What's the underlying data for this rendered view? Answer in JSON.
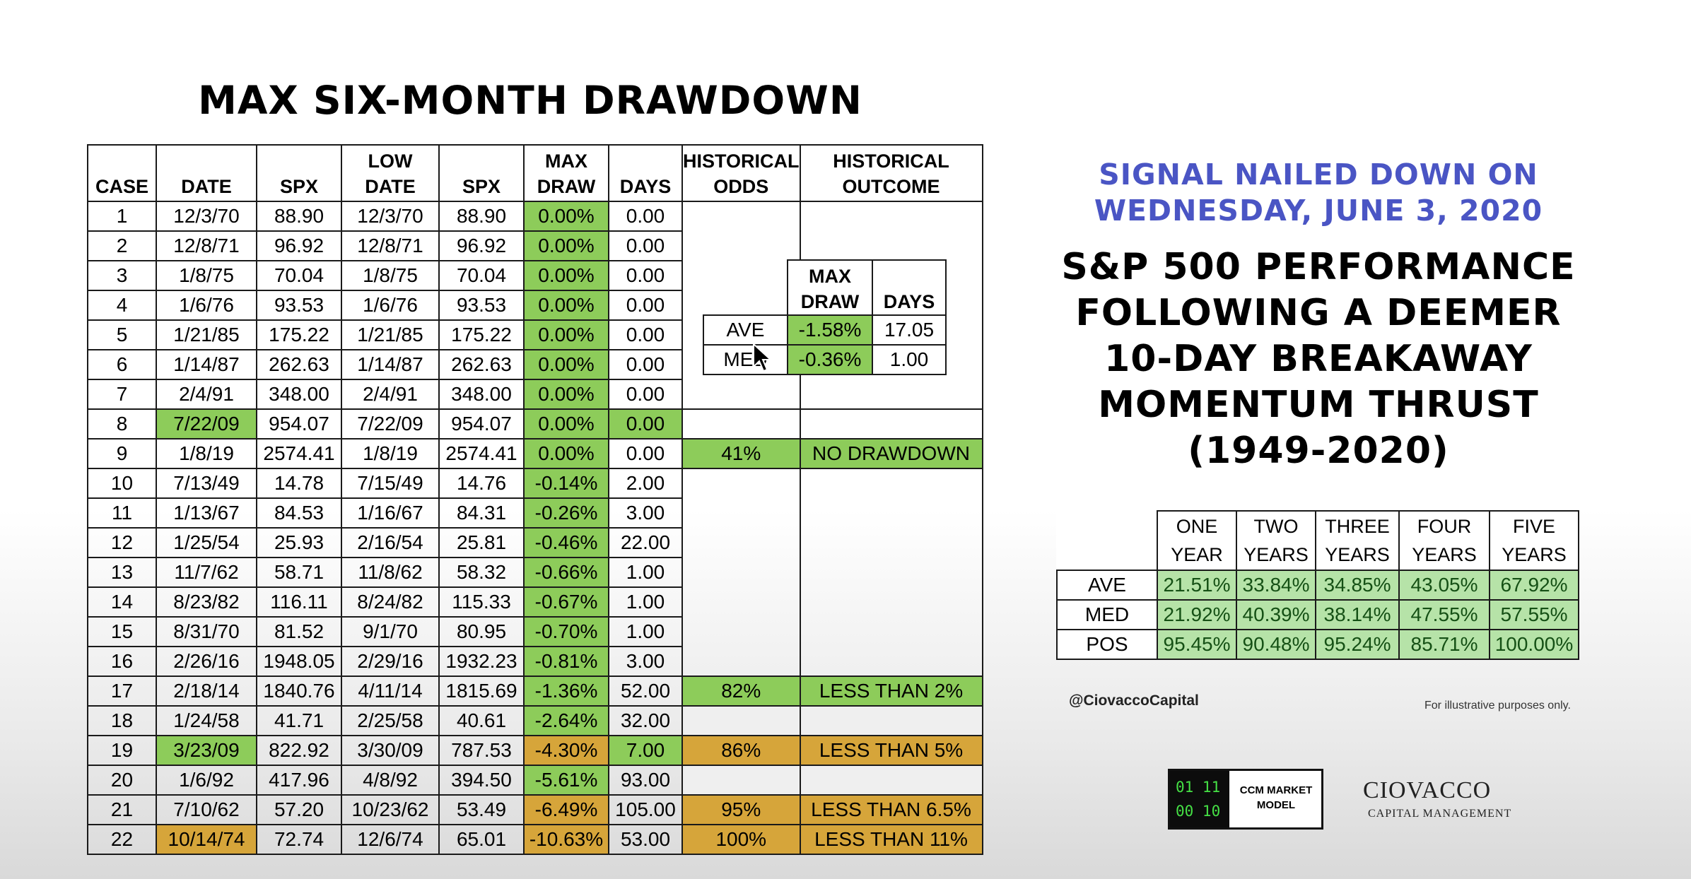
{
  "title": "MAX SIX-MONTH DRAWDOWN",
  "main_table": {
    "headers": [
      [
        "",
        "CASE"
      ],
      [
        "",
        "DATE"
      ],
      [
        "",
        "SPX"
      ],
      [
        "LOW",
        "DATE"
      ],
      [
        "",
        "SPX"
      ],
      [
        "MAX",
        "DRAW"
      ],
      [
        "",
        "DAYS"
      ],
      [
        "HISTORICAL",
        "ODDS"
      ],
      [
        "HISTORICAL",
        "OUTCOME"
      ]
    ],
    "rows": [
      {
        "case": "1",
        "date": "12/3/70",
        "spx": "88.90",
        "low_date": "12/3/70",
        "low_spx": "88.90",
        "max_draw": "0.00%",
        "days": "0.00"
      },
      {
        "case": "2",
        "date": "12/8/71",
        "spx": "96.92",
        "low_date": "12/8/71",
        "low_spx": "96.92",
        "max_draw": "0.00%",
        "days": "0.00"
      },
      {
        "case": "3",
        "date": "1/8/75",
        "spx": "70.04",
        "low_date": "1/8/75",
        "low_spx": "70.04",
        "max_draw": "0.00%",
        "days": "0.00"
      },
      {
        "case": "4",
        "date": "1/6/76",
        "spx": "93.53",
        "low_date": "1/6/76",
        "low_spx": "93.53",
        "max_draw": "0.00%",
        "days": "0.00"
      },
      {
        "case": "5",
        "date": "1/21/85",
        "spx": "175.22",
        "low_date": "1/21/85",
        "low_spx": "175.22",
        "max_draw": "0.00%",
        "days": "0.00"
      },
      {
        "case": "6",
        "date": "1/14/87",
        "spx": "262.63",
        "low_date": "1/14/87",
        "low_spx": "262.63",
        "max_draw": "0.00%",
        "days": "0.00"
      },
      {
        "case": "7",
        "date": "2/4/91",
        "spx": "348.00",
        "low_date": "2/4/91",
        "low_spx": "348.00",
        "max_draw": "0.00%",
        "days": "0.00"
      },
      {
        "case": "8",
        "date": "7/22/09",
        "spx": "954.07",
        "low_date": "7/22/09",
        "low_spx": "954.07",
        "max_draw": "0.00%",
        "days": "0.00"
      },
      {
        "case": "9",
        "date": "1/8/19",
        "spx": "2574.41",
        "low_date": "1/8/19",
        "low_spx": "2574.41",
        "max_draw": "0.00%",
        "days": "0.00",
        "odds": "41%",
        "outcome": "NO DRAWDOWN"
      },
      {
        "case": "10",
        "date": "7/13/49",
        "spx": "14.78",
        "low_date": "7/15/49",
        "low_spx": "14.76",
        "max_draw": "-0.14%",
        "days": "2.00"
      },
      {
        "case": "11",
        "date": "1/13/67",
        "spx": "84.53",
        "low_date": "1/16/67",
        "low_spx": "84.31",
        "max_draw": "-0.26%",
        "days": "3.00"
      },
      {
        "case": "12",
        "date": "1/25/54",
        "spx": "25.93",
        "low_date": "2/16/54",
        "low_spx": "25.81",
        "max_draw": "-0.46%",
        "days": "22.00"
      },
      {
        "case": "13",
        "date": "11/7/62",
        "spx": "58.71",
        "low_date": "11/8/62",
        "low_spx": "58.32",
        "max_draw": "-0.66%",
        "days": "1.00"
      },
      {
        "case": "14",
        "date": "8/23/82",
        "spx": "116.11",
        "low_date": "8/24/82",
        "low_spx": "115.33",
        "max_draw": "-0.67%",
        "days": "1.00"
      },
      {
        "case": "15",
        "date": "8/31/70",
        "spx": "81.52",
        "low_date": "9/1/70",
        "low_spx": "80.95",
        "max_draw": "-0.70%",
        "days": "1.00"
      },
      {
        "case": "16",
        "date": "2/26/16",
        "spx": "1948.05",
        "low_date": "2/29/16",
        "low_spx": "1932.23",
        "max_draw": "-0.81%",
        "days": "3.00"
      },
      {
        "case": "17",
        "date": "2/18/14",
        "spx": "1840.76",
        "low_date": "4/11/14",
        "low_spx": "1815.69",
        "max_draw": "-1.36%",
        "days": "52.00",
        "odds": "82%",
        "outcome": "LESS THAN 2%"
      },
      {
        "case": "18",
        "date": "1/24/58",
        "spx": "41.71",
        "low_date": "2/25/58",
        "low_spx": "40.61",
        "max_draw": "-2.64%",
        "days": "32.00"
      },
      {
        "case": "19",
        "date": "3/23/09",
        "spx": "822.92",
        "low_date": "3/30/09",
        "low_spx": "787.53",
        "max_draw": "-4.30%",
        "days": "7.00",
        "odds": "86%",
        "outcome": "LESS THAN 5%"
      },
      {
        "case": "20",
        "date": "1/6/92",
        "spx": "417.96",
        "low_date": "4/8/92",
        "low_spx": "394.50",
        "max_draw": "-5.61%",
        "days": "93.00"
      },
      {
        "case": "21",
        "date": "7/10/62",
        "spx": "57.20",
        "low_date": "10/23/62",
        "low_spx": "53.49",
        "max_draw": "-6.49%",
        "days": "105.00",
        "odds": "95%",
        "outcome": "LESS THAN 6.5%"
      },
      {
        "case": "22",
        "date": "10/14/74",
        "spx": "72.74",
        "low_date": "12/6/74",
        "low_spx": "65.01",
        "max_draw": "-10.63%",
        "days": "53.00",
        "odds": "100%",
        "outcome": "LESS THAN 11%"
      }
    ]
  },
  "inner_table": {
    "headers": [
      [
        "MAX",
        "DRAW"
      ],
      [
        "",
        "DAYS"
      ]
    ],
    "rows": [
      {
        "label": "AVE",
        "max_draw": "-1.58%",
        "days": "17.05"
      },
      {
        "label": "MED",
        "max_draw": "-0.36%",
        "days": "1.00"
      }
    ]
  },
  "signal": {
    "line1": "SIGNAL NAILED DOWN ON",
    "line2": "WEDNESDAY, JUNE 3, 2020"
  },
  "performance": {
    "lines": [
      "S&P 500 PERFORMANCE",
      "FOLLOWING A DEEMER",
      "10-DAY BREAKAWAY",
      "MOMENTUM THRUST",
      "(1949-2020)"
    ],
    "table": {
      "headers": [
        [
          "ONE",
          "YEAR"
        ],
        [
          "TWO",
          "YEARS"
        ],
        [
          "THREE",
          "YEARS"
        ],
        [
          "FOUR",
          "YEARS"
        ],
        [
          "FIVE",
          "YEARS"
        ]
      ],
      "rows": [
        {
          "label": "AVE",
          "values": [
            "21.51%",
            "33.84%",
            "34.85%",
            "43.05%",
            "67.92%"
          ]
        },
        {
          "label": "MED",
          "values": [
            "21.92%",
            "40.39%",
            "38.14%",
            "47.55%",
            "57.55%"
          ]
        },
        {
          "label": "POS",
          "values": [
            "95.45%",
            "90.48%",
            "95.24%",
            "85.71%",
            "100.00%"
          ]
        }
      ]
    }
  },
  "handle": "@CiovaccoCapital",
  "disclaimer": "For illustrative purposes only.",
  "ccm": {
    "digits_top": "01 11",
    "digits_bottom": "00 10",
    "label_line1": "CCM MARKET",
    "label_line2": "MODEL"
  },
  "ciovacco": {
    "name": "CIOVACCO",
    "sub": "CAPITAL MANAGEMENT"
  },
  "colors": {
    "green": "#8dcc5a",
    "orange": "#d6a53a",
    "signal_blue": "#4a55c4",
    "perf_cell": "#b6e3a8"
  }
}
